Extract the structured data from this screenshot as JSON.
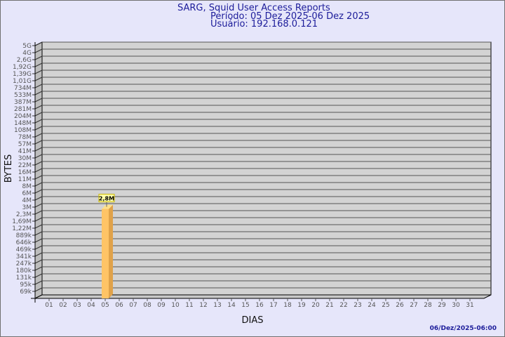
{
  "header": {
    "title": "SARG, Squid User Access Reports",
    "period": "Período: 05 Dez 2025-06 Dez 2025",
    "user": "Usuário: 192.168.0.121"
  },
  "footer": {
    "timestamp": "06/Dez/2025-06:00"
  },
  "colors": {
    "background": "#e6e6fa",
    "plot_wall": "#d3d3d3",
    "bar_front": "#ffc466",
    "bar_side": "#e0a24a",
    "label_box": "#ffffa8",
    "title": "#1c1c9a"
  },
  "chart_data": {
    "type": "bar",
    "style": "3d",
    "xlabel": "DIAS",
    "ylabel": "BYTES",
    "yscale": "log",
    "grid": true,
    "categories": [
      "01",
      "02",
      "03",
      "04",
      "05",
      "06",
      "07",
      "08",
      "09",
      "10",
      "11",
      "12",
      "13",
      "14",
      "15",
      "16",
      "17",
      "18",
      "19",
      "20",
      "21",
      "22",
      "23",
      "24",
      "25",
      "26",
      "27",
      "28",
      "29",
      "30",
      "31"
    ],
    "yticks": [
      "5G",
      "4G",
      "2,6G",
      "1,92G",
      "1,39G",
      "1,01G",
      "734M",
      "533M",
      "387M",
      "281M",
      "204M",
      "148M",
      "108M",
      "78M",
      "57M",
      "41M",
      "30M",
      "22M",
      "16M",
      "11M",
      "8M",
      "6M",
      "4M",
      "3M",
      "2,3M",
      "1,69M",
      "1,22M",
      "889k",
      "646k",
      "469k",
      "341k",
      "247k",
      "180k",
      "131k",
      "95k",
      "69k"
    ],
    "bars": [
      {
        "category": "05",
        "value": 2800000,
        "label": "2,8M"
      }
    ]
  }
}
